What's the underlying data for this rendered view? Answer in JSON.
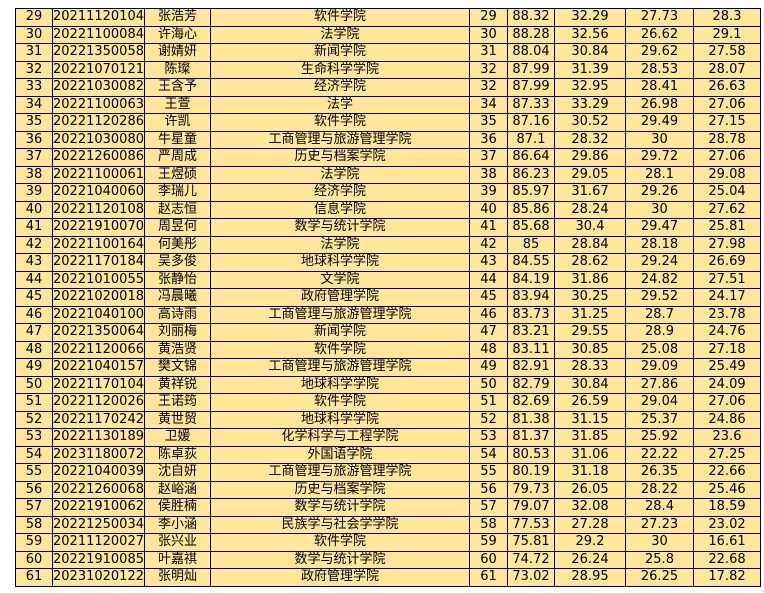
{
  "colors": {
    "cell_background": "#ffe699",
    "border": "#000000"
  },
  "rows": [
    [
      "29",
      "20211120104",
      "张浩芳",
      "软件学院",
      "29",
      "88.32",
      "32.29",
      "27.73",
      "28.3"
    ],
    [
      "30",
      "20221100084",
      "许海心",
      "法学院",
      "30",
      "88.28",
      "32.56",
      "26.62",
      "29.1"
    ],
    [
      "31",
      "20221350058",
      "谢婧妍",
      "新闻学院",
      "31",
      "88.04",
      "30.84",
      "29.62",
      "27.58"
    ],
    [
      "32",
      "20221070121",
      "陈璨",
      "生命科学学院",
      "32",
      "87.99",
      "31.39",
      "28.53",
      "28.07"
    ],
    [
      "33",
      "20221030082",
      "王含予",
      "经济学院",
      "32",
      "87.99",
      "32.95",
      "28.41",
      "26.63"
    ],
    [
      "34",
      "20221100063",
      "王萱",
      "法学",
      "34",
      "87.33",
      "33.29",
      "26.98",
      "27.06"
    ],
    [
      "35",
      "20221120286",
      "许凯",
      "软件学院",
      "35",
      "87.16",
      "30.52",
      "29.49",
      "27.15"
    ],
    [
      "36",
      "20221030080",
      "牛星童",
      "工商管理与旅游管理学院",
      "36",
      "87.1",
      "28.32",
      "30",
      "28.78"
    ],
    [
      "37",
      "20221260086",
      "严周成",
      "历史与档案学院",
      "37",
      "86.64",
      "29.86",
      "29.72",
      "27.06"
    ],
    [
      "38",
      "20221100061",
      "王煜硕",
      "法学院",
      "38",
      "86.23",
      "29.05",
      "28.1",
      "29.08"
    ],
    [
      "39",
      "20221040060",
      "李瑞儿",
      "经济学院",
      "39",
      "85.97",
      "31.67",
      "29.26",
      "25.04"
    ],
    [
      "40",
      "20221120108",
      "赵志恒",
      "信息学院",
      "40",
      "85.86",
      "28.24",
      "30",
      "27.62"
    ],
    [
      "41",
      "20221910070",
      "周昱何",
      "数学与统计学院",
      "41",
      "85.68",
      "30.4",
      "29.47",
      "25.81"
    ],
    [
      "42",
      "20221100164",
      "何美彤",
      "法学院",
      "42",
      "85",
      "28.84",
      "28.18",
      "27.98"
    ],
    [
      "43",
      "20221170184",
      "吴多俊",
      "地球科学学院",
      "43",
      "84.55",
      "28.62",
      "29.24",
      "26.69"
    ],
    [
      "44",
      "20221010055",
      "张静怡",
      "文学院",
      "44",
      "84.19",
      "31.86",
      "24.82",
      "27.51"
    ],
    [
      "45",
      "20221020018",
      "冯晨曦",
      "政府管理学院",
      "45",
      "83.94",
      "30.25",
      "29.52",
      "24.17"
    ],
    [
      "46",
      "20221040100",
      "高诗雨",
      "工商管理与旅游管理学院",
      "46",
      "83.73",
      "31.25",
      "28.7",
      "23.78"
    ],
    [
      "47",
      "20221350064",
      "刘丽梅",
      "新闻学院",
      "47",
      "83.21",
      "29.55",
      "28.9",
      "24.76"
    ],
    [
      "48",
      "20221120066",
      "黄浩贤",
      "软件学院",
      "48",
      "83.11",
      "30.85",
      "25.08",
      "27.18"
    ],
    [
      "49",
      "20221040157",
      "樊文锦",
      "工商管理与旅游管理学院",
      "49",
      "82.91",
      "28.33",
      "29.09",
      "25.49"
    ],
    [
      "50",
      "20221170104",
      "黄祥锐",
      "地球科学学院",
      "50",
      "82.79",
      "30.84",
      "27.86",
      "24.09"
    ],
    [
      "51",
      "20221120026",
      "王诺筠",
      "软件学院",
      "51",
      "82.69",
      "26.59",
      "29.04",
      "27.06"
    ],
    [
      "52",
      "20221170242",
      "黄世贸",
      "地球科学学院",
      "52",
      "81.38",
      "31.15",
      "25.37",
      "24.86"
    ],
    [
      "53",
      "20221130189",
      "卫媛",
      "化学科学与工程学院",
      "53",
      "81.37",
      "31.85",
      "25.92",
      "23.6"
    ],
    [
      "54",
      "20231180072",
      "陈卓荻",
      "外国语学院",
      "54",
      "80.53",
      "31.06",
      "22.22",
      "27.25"
    ],
    [
      "55",
      "20221040039",
      "沈自妍",
      "工商管理与旅游管理学院",
      "55",
      "80.19",
      "31.18",
      "26.35",
      "22.66"
    ],
    [
      "56",
      "20221260068",
      "赵峪涵",
      "历史与档案学院",
      "56",
      "79.73",
      "26.05",
      "28.22",
      "25.46"
    ],
    [
      "57",
      "20221910062",
      "侯胜楠",
      "数学与统计学院",
      "57",
      "79.07",
      "32.08",
      "28.4",
      "18.59"
    ],
    [
      "58",
      "20221250034",
      "李小涵",
      "民族学与社会学学院",
      "58",
      "77.53",
      "27.28",
      "27.23",
      "23.02"
    ],
    [
      "59",
      "20211120027",
      "张兴业",
      "软件学院",
      "59",
      "75.81",
      "29.2",
      "30",
      "16.61"
    ],
    [
      "60",
      "20221910085",
      "叶嘉祺",
      "数学与统计学院",
      "60",
      "74.72",
      "26.24",
      "25.8",
      "22.68"
    ],
    [
      "61",
      "20231020122",
      "张明灿",
      "政府管理学院",
      "61",
      "73.02",
      "28.95",
      "26.25",
      "17.82"
    ]
  ]
}
